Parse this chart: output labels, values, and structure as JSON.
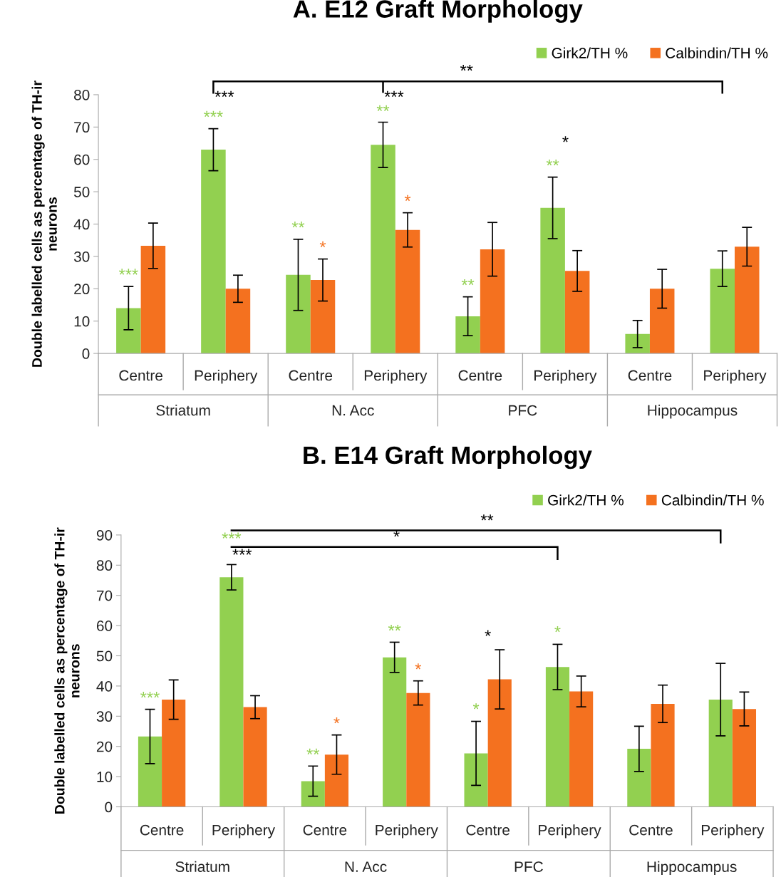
{
  "chart_data": [
    {
      "type": "bar",
      "title": "A. E12 Graft Morphology",
      "ylabel": "Double labelled cells as percentage of TH-ir\nneurons",
      "categories": [
        "Centre",
        "Periphery",
        "Centre",
        "Periphery",
        "Centre",
        "Periphery",
        "Centre",
        "Periphery"
      ],
      "series": [
        {
          "name": "Girk2/TH %",
          "color": "#92d050",
          "values": [
            14,
            63,
            24.3,
            64.5,
            11.5,
            45,
            6,
            26.2
          ],
          "errors": [
            6.7,
            6.5,
            11,
            7,
            6,
            9.5,
            4.2,
            5.5
          ]
        },
        {
          "name": "Calbindin/TH %",
          "color": "#f4711f",
          "values": [
            33.3,
            20,
            22.7,
            38.2,
            32.2,
            25.5,
            20,
            33
          ],
          "errors": [
            7,
            4.2,
            6.5,
            5.3,
            8.3,
            6.3,
            6,
            6
          ]
        }
      ],
      "ylim": [
        0,
        80
      ],
      "yticks": [
        0,
        10,
        20,
        30,
        40,
        50,
        60,
        70,
        80
      ],
      "grid": false,
      "legend": "top right",
      "annotations": [
        "Striatum",
        "N. Acc",
        "PFC",
        "Hippocampus",
        "***",
        "***",
        "***",
        "**",
        "*",
        "**",
        "***",
        "*",
        "**",
        "**",
        "*",
        "**"
      ]
    },
    {
      "type": "bar",
      "title": "B. E14 Graft Morphology",
      "ylabel": "Double labelled cells as percentage of TH-ir\nneurons",
      "categories": [
        "Centre",
        "Periphery",
        "Centre",
        "Periphery",
        "Centre",
        "Periphery",
        "Centre",
        "Periphery"
      ],
      "series": [
        {
          "name": "Girk2/TH %",
          "color": "#92d050",
          "values": [
            23.3,
            76,
            8.5,
            49.5,
            17.7,
            46.3,
            19.2,
            35.5
          ],
          "errors": [
            9,
            4.2,
            5,
            5,
            10.6,
            7.5,
            7.5,
            12
          ]
        },
        {
          "name": "Calbindin/TH %",
          "color": "#f4711f",
          "values": [
            35.5,
            33,
            17.3,
            37.7,
            42.2,
            38.2,
            34.1,
            32.4
          ],
          "errors": [
            6.5,
            3.8,
            6.5,
            4,
            9.8,
            5.1,
            6.2,
            5.6
          ]
        }
      ],
      "ylim": [
        0,
        90
      ],
      "yticks": [
        0,
        10,
        20,
        30,
        40,
        50,
        60,
        70,
        80,
        90
      ],
      "grid": false,
      "legend": "top right",
      "annotations": [
        "Striatum",
        "N. Acc",
        "PFC",
        "Hippocampus",
        "***",
        "***",
        "***",
        "**",
        "*",
        "**",
        "*",
        "*",
        "*",
        "*",
        "**",
        "*"
      ]
    }
  ]
}
